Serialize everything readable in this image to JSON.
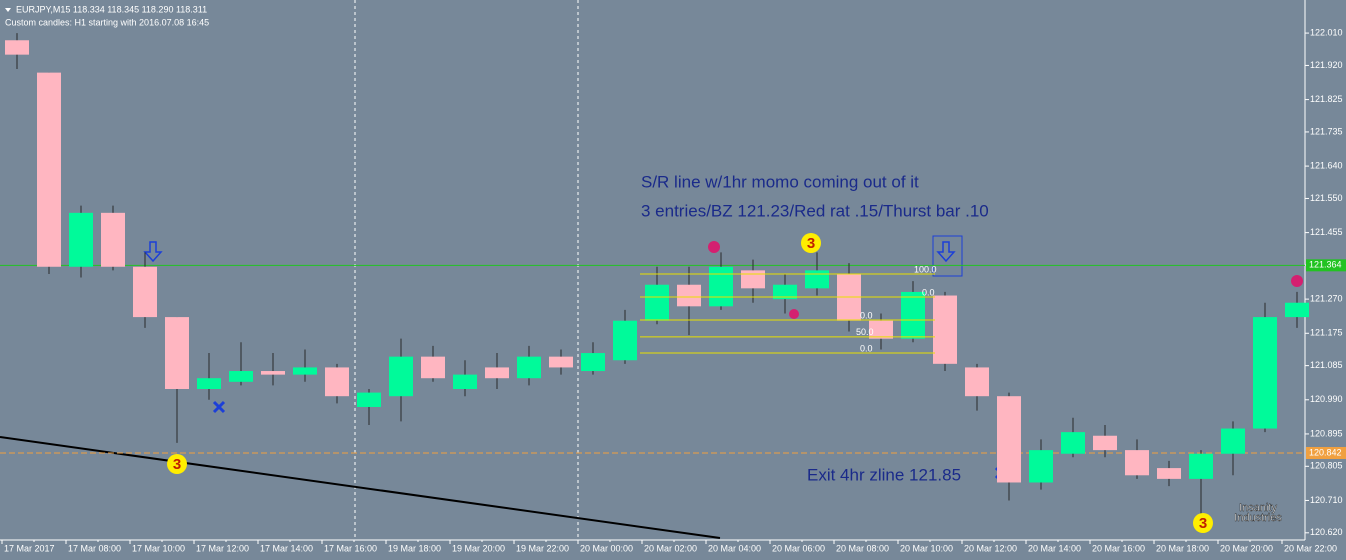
{
  "chart_data": {
    "type": "candlestick",
    "title": "EURJPY,M15  118.334 118.345 118.290 118.311",
    "subtitle": "Custom candles: H1 starting with 2016.07.08 16:45",
    "categories": [
      "17 Mar 2017",
      null,
      "17 Mar 08:00",
      null,
      "17 Mar 10:00",
      null,
      "17 Mar 12:00",
      null,
      "17 Mar 14:00",
      null,
      "17 Mar 16:00",
      null,
      "19 Mar 18:00",
      null,
      "19 Mar 20:00",
      null,
      "19 Mar 22:00",
      null,
      "20 Mar 00:00",
      null,
      "20 Mar 02:00",
      null,
      "20 Mar 04:00",
      null,
      "20 Mar 06:00",
      null,
      "20 Mar 08:00",
      null,
      "20 Mar 10:00",
      null,
      "20 Mar 12:00",
      null,
      "20 Mar 14:00",
      null,
      "20 Mar 16:00",
      null,
      "20 Mar 18:00",
      null,
      "20 Mar 20:00",
      null,
      "20 Mar 22:00"
    ],
    "open": [
      121.99,
      121.9,
      121.36,
      121.51,
      121.36,
      121.22,
      121.02,
      121.04,
      121.07,
      121.06,
      121.08,
      120.97,
      121.0,
      121.11,
      121.02,
      121.08,
      121.05,
      121.11,
      121.07,
      121.1,
      121.21,
      121.31,
      121.25,
      121.35,
      121.27,
      121.3,
      121.34,
      121.21,
      121.16,
      121.28,
      121.08,
      121.0,
      120.76,
      120.84,
      120.89,
      120.85,
      120.8,
      120.77,
      120.84,
      120.91,
      121.22
    ],
    "high": [
      122.01,
      121.9,
      121.53,
      121.53,
      121.4,
      121.22,
      121.12,
      121.15,
      121.12,
      121.13,
      121.09,
      121.02,
      121.16,
      121.14,
      121.1,
      121.12,
      121.14,
      121.13,
      121.15,
      121.24,
      121.36,
      121.36,
      121.4,
      121.38,
      121.34,
      121.4,
      121.37,
      121.23,
      121.32,
      121.29,
      121.09,
      121.01,
      120.88,
      120.94,
      120.92,
      120.88,
      120.82,
      120.85,
      120.93,
      121.26,
      121.29
    ],
    "low": [
      121.91,
      121.34,
      121.33,
      121.35,
      121.19,
      120.87,
      120.99,
      121.03,
      121.03,
      121.04,
      120.98,
      120.92,
      120.93,
      121.04,
      121.0,
      121.02,
      121.03,
      121.06,
      121.06,
      121.09,
      121.2,
      121.17,
      121.24,
      121.26,
      121.23,
      121.28,
      121.18,
      121.13,
      121.15,
      121.07,
      120.96,
      120.71,
      120.74,
      120.83,
      120.83,
      120.77,
      120.75,
      120.66,
      120.78,
      120.9,
      121.19
    ],
    "close": [
      121.95,
      121.36,
      121.51,
      121.36,
      121.22,
      121.02,
      121.05,
      121.07,
      121.06,
      121.08,
      121.0,
      121.01,
      121.11,
      121.05,
      121.06,
      121.05,
      121.11,
      121.08,
      121.12,
      121.21,
      121.31,
      121.25,
      121.36,
      121.3,
      121.31,
      121.35,
      121.21,
      121.16,
      121.29,
      121.09,
      121.0,
      120.76,
      120.85,
      120.9,
      120.85,
      120.78,
      120.77,
      120.84,
      120.91,
      121.22,
      121.26
    ],
    "up_color": "#00fa9a",
    "down_color": "#ffb6c1",
    "ylim": [
      120.6,
      122.102
    ],
    "yticks": [
      {
        "value": 122.01,
        "label": "122.010"
      },
      {
        "value": 121.92,
        "label": "121.920"
      },
      {
        "value": 121.825,
        "label": "121.825"
      },
      {
        "value": 121.735,
        "label": "121.735"
      },
      {
        "value": 121.64,
        "label": "121.640"
      },
      {
        "value": 121.55,
        "label": "121.550"
      },
      {
        "value": 121.455,
        "label": "121.455"
      },
      {
        "value": 121.365,
        "label": "121.365"
      },
      {
        "value": 121.27,
        "label": "121.270"
      },
      {
        "value": 121.175,
        "label": "121.175"
      },
      {
        "value": 121.085,
        "label": "121.085"
      },
      {
        "value": 120.99,
        "label": "120.990"
      },
      {
        "value": 120.895,
        "label": "120.895"
      },
      {
        "value": 120.805,
        "label": "120.805"
      },
      {
        "value": 120.71,
        "label": "120.710"
      },
      {
        "value": 120.62,
        "label": "120.620"
      }
    ],
    "levels": [
      {
        "value": 121.364,
        "label": "121.364",
        "color": "#22c322"
      },
      {
        "value": 120.842,
        "label": "120.842",
        "color": "#f0a040"
      }
    ],
    "fibo": {
      "prices": [
        121.34,
        121.276,
        121.212,
        121.165,
        121.12
      ],
      "labels": [
        "100.0",
        "0.0",
        "0.0",
        "50.0",
        "0.0"
      ],
      "color": "#e8e000"
    },
    "annotations": [
      "S/R line w/1hr momo coming out of it",
      "3 entries/BZ 121.23/Red rat .15/Thurst bar .10",
      "Exit 4hr zline 121.85"
    ],
    "signals": [
      "3",
      "3",
      "3"
    ],
    "watermark": [
      "Insanity",
      "Industries"
    ]
  }
}
